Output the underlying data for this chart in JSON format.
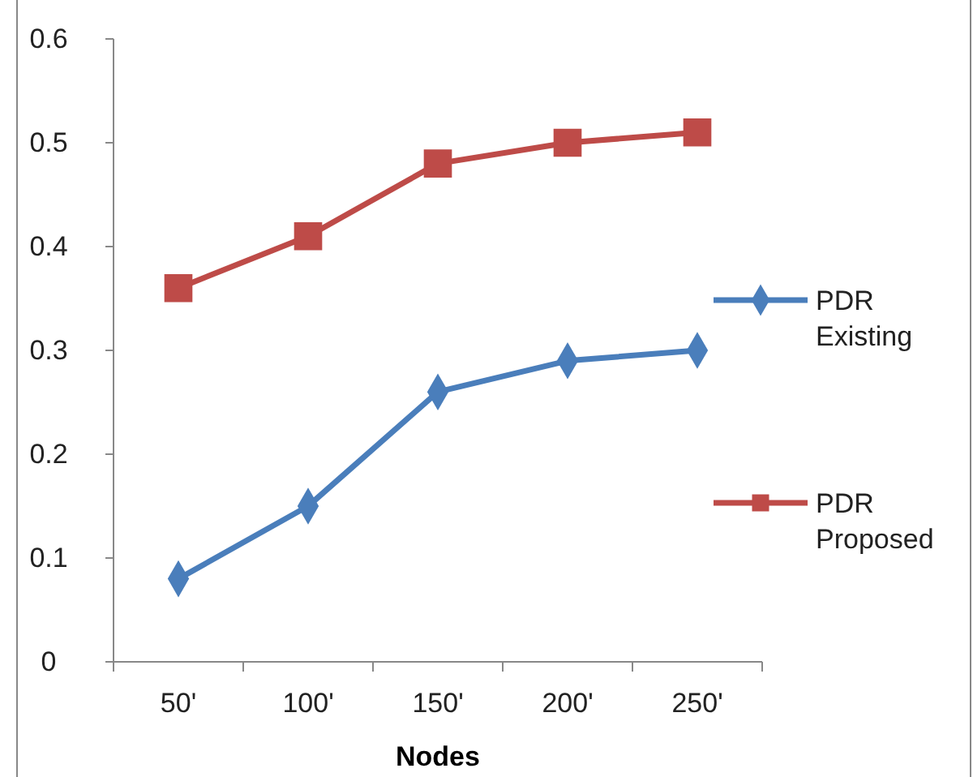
{
  "chart_data": {
    "type": "line",
    "xlabel": "Nodes",
    "categories": [
      "50'",
      "100'",
      "150'",
      "200'",
      "250'"
    ],
    "series": [
      {
        "name": "PDR Existing",
        "color": "#4a7ebb",
        "marker": "diamond",
        "values": [
          0.08,
          0.15,
          0.26,
          0.29,
          0.3
        ]
      },
      {
        "name": "PDR Proposed",
        "color": "#be4b48",
        "marker": "square",
        "values": [
          0.36,
          0.41,
          0.48,
          0.5,
          0.51
        ]
      }
    ],
    "ylim": [
      0,
      0.6
    ],
    "yticks": [
      {
        "value": 0,
        "label": "0"
      },
      0.1,
      0.2,
      0.3,
      0.4,
      0.5,
      0.6
    ],
    "grid": false,
    "legend": "right",
    "line_style": "solid"
  }
}
